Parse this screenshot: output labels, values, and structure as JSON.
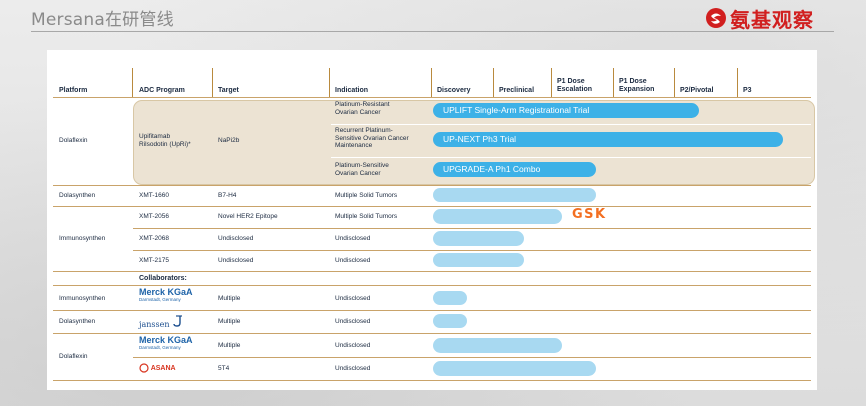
{
  "header": {
    "title": "Mersana在研管线",
    "brand_text": "氨基观察"
  },
  "table": {
    "columns": {
      "platform": "Platform",
      "adc_program": "ADC Program",
      "target": "Target",
      "indication": "Indication",
      "discovery": "Discovery",
      "preclinical": "Preclinical",
      "p1_dose_escalation": "P1 Dose\nEscalation",
      "p1_dose_expansion": "P1 Dose\nExpansion",
      "p2_pivotal": "P2/Pivotal",
      "p3": "P3"
    },
    "dolaflexin_group": {
      "platform": "Dolaflexin",
      "program": "Upifitamab\nRilsodotin (UpRi)*",
      "target": "NaPi2b",
      "rows": [
        {
          "indication": "Platinum-Resistant\nOvarian Cancer",
          "trial": "UPLIFT Single-Arm Registrational Trial"
        },
        {
          "indication": "Recurrent Platinum-\nSensitive Ovarian Cancer\nMaintenance",
          "trial": "UP-NEXT Ph3 Trial"
        },
        {
          "indication": "Platinum-Sensitive\nOvarian Cancer",
          "trial": "UPGRADE-A Ph1 Combo"
        }
      ]
    },
    "rows": [
      {
        "platform": "Dolasynthen",
        "program": "XMT-1660",
        "target": "B7-H4",
        "indication": "Multiple Solid Tumors"
      },
      {
        "platform": "",
        "program": "XMT-2056",
        "target": "Novel HER2 Epitope",
        "indication": "Multiple Solid Tumors",
        "partner": "GSK"
      },
      {
        "platform": "Immunosynthen",
        "program": "XMT-2068",
        "target": "Undisclosed",
        "indication": "Undisclosed"
      },
      {
        "platform": "",
        "program": "XMT-2175",
        "target": "Undisclosed",
        "indication": "Undisclosed"
      }
    ],
    "collaborators_label": "Collaborators:",
    "collaborator_rows": [
      {
        "platform": "Immunosynthen",
        "partner": "Merck KGaA",
        "partner_sub": "Darmstadt, Germany",
        "target": "Multiple",
        "indication": "Undisclosed"
      },
      {
        "platform": "Dolasynthen",
        "partner": "janssen",
        "target": "Multiple",
        "indication": "Undisclosed"
      },
      {
        "platform": "Dolaflexin",
        "partner": "Merck KGaA",
        "partner_sub": "Darmstadt, Germany",
        "target": "Multiple",
        "indication": "Undisclosed"
      },
      {
        "platform": "",
        "partner": "ASANA",
        "target": "5T4",
        "indication": "Undisclosed"
      }
    ]
  },
  "progress": {
    "upflift": 0.7,
    "upnext": 0.92,
    "upgrade": 0.43,
    "xmt1660": 0.43,
    "xmt2056": 0.34,
    "xmt2068": 0.24,
    "xmt2175": 0.24,
    "c1": 0.09,
    "c2": 0.09,
    "c3": 0.34,
    "c4": 0.43
  },
  "colors": {
    "bar_dark": "#3db1e7",
    "bar_light": "#a8d9f1",
    "gsk": "#f36f21",
    "brand": "#d11f1f"
  }
}
